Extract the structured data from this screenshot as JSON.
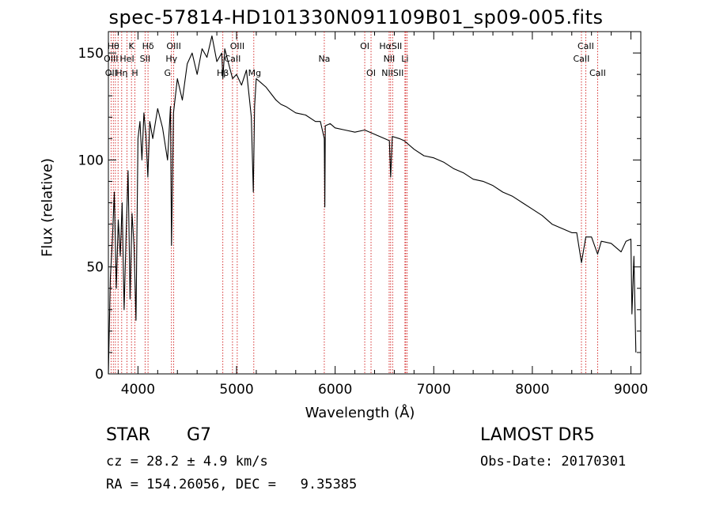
{
  "chart_data": {
    "type": "line",
    "title": "spec-57814-HD101330N091109B01_sp09-005.fits",
    "xlabel": "Wavelength (Å)",
    "ylabel": "Flux (relative)",
    "xlim": [
      3700,
      9100
    ],
    "ylim": [
      0,
      160
    ],
    "xticks": [
      4000,
      5000,
      6000,
      7000,
      8000,
      9000
    ],
    "yticks": [
      0,
      50,
      100,
      150
    ],
    "series": [
      {
        "x": [
          3700,
          3720,
          3740,
          3760,
          3780,
          3800,
          3820,
          3840,
          3860,
          3880,
          3900,
          3920,
          3940,
          3960,
          3980,
          4000,
          4020,
          4040,
          4060,
          4080,
          4100,
          4120,
          4150,
          4200,
          4250,
          4300,
          4330,
          4340,
          4360,
          4400,
          4450,
          4500,
          4550,
          4600,
          4650,
          4700,
          4750,
          4800,
          4850,
          4861,
          4880,
          4920,
          4960,
          5000,
          5050,
          5100,
          5150,
          5170,
          5183,
          5200,
          5250,
          5300,
          5350,
          5400,
          5450,
          5500,
          5600,
          5700,
          5800,
          5850,
          5890,
          5895,
          5900,
          5950,
          6000,
          6100,
          6200,
          6300,
          6400,
          6500,
          6550,
          6563,
          6580,
          6650,
          6700,
          6800,
          6900,
          7000,
          7100,
          7200,
          7300,
          7400,
          7500,
          7600,
          7700,
          7800,
          7900,
          8000,
          8100,
          8200,
          8300,
          8400,
          8450,
          8498,
          8542,
          8600,
          8662,
          8700,
          8800,
          8900,
          8950,
          9000,
          9010,
          9030,
          9050
        ],
        "y": [
          0,
          45,
          62,
          85,
          40,
          72,
          55,
          80,
          30,
          65,
          95,
          35,
          75,
          60,
          25,
          110,
          118,
          100,
          122,
          112,
          92,
          118,
          110,
          124,
          115,
          100,
          125,
          60,
          122,
          138,
          128,
          145,
          150,
          140,
          152,
          148,
          158,
          146,
          150,
          138,
          152,
          145,
          138,
          140,
          135,
          142,
          120,
          85,
          125,
          138,
          136,
          134,
          131,
          128,
          126,
          125,
          122,
          121,
          118,
          118,
          110,
          78,
          116,
          117,
          115,
          114,
          113,
          114,
          112,
          110,
          109,
          92,
          111,
          110,
          109,
          105,
          102,
          101,
          99,
          96,
          94,
          91,
          90,
          88,
          85,
          83,
          80,
          77,
          74,
          70,
          68,
          66,
          66,
          52,
          64,
          64,
          56,
          62,
          61,
          57,
          62,
          63,
          28,
          55,
          10
        ]
      }
    ],
    "line_markers": {
      "top_row": [
        "Hθ",
        "K",
        "Hδ",
        "OIII",
        "OIII",
        "OI",
        "HαSII",
        "CaII"
      ],
      "second_row": [
        "OIII",
        "HeI",
        "SII",
        "Hγ",
        "CaII",
        "Na",
        "NII",
        "Li",
        "CaII"
      ],
      "third_row": [
        "OII",
        "Hη",
        "H",
        "G",
        "Hβ",
        "Mg",
        "OI",
        "NIISII",
        "CaII"
      ],
      "wavelengths": [
        3727,
        3750,
        3771,
        3798,
        3835,
        3889,
        3934,
        3969,
        4072,
        4102,
        4340,
        4363,
        4861,
        4959,
        5007,
        5175,
        5890,
        6300,
        6364,
        6548,
        6563,
        6583,
        6708,
        6716,
        6731,
        8498,
        8542,
        8662
      ],
      "color": "#cc0000"
    }
  },
  "info": {
    "class": "STAR",
    "subclass": "G7",
    "survey": "LAMOST DR5",
    "cz": "cz = 28.2 ± 4.9 km/s",
    "obs_date": "Obs-Date: 20170301",
    "coords": "RA = 154.26056, DEC =   9.35385"
  }
}
